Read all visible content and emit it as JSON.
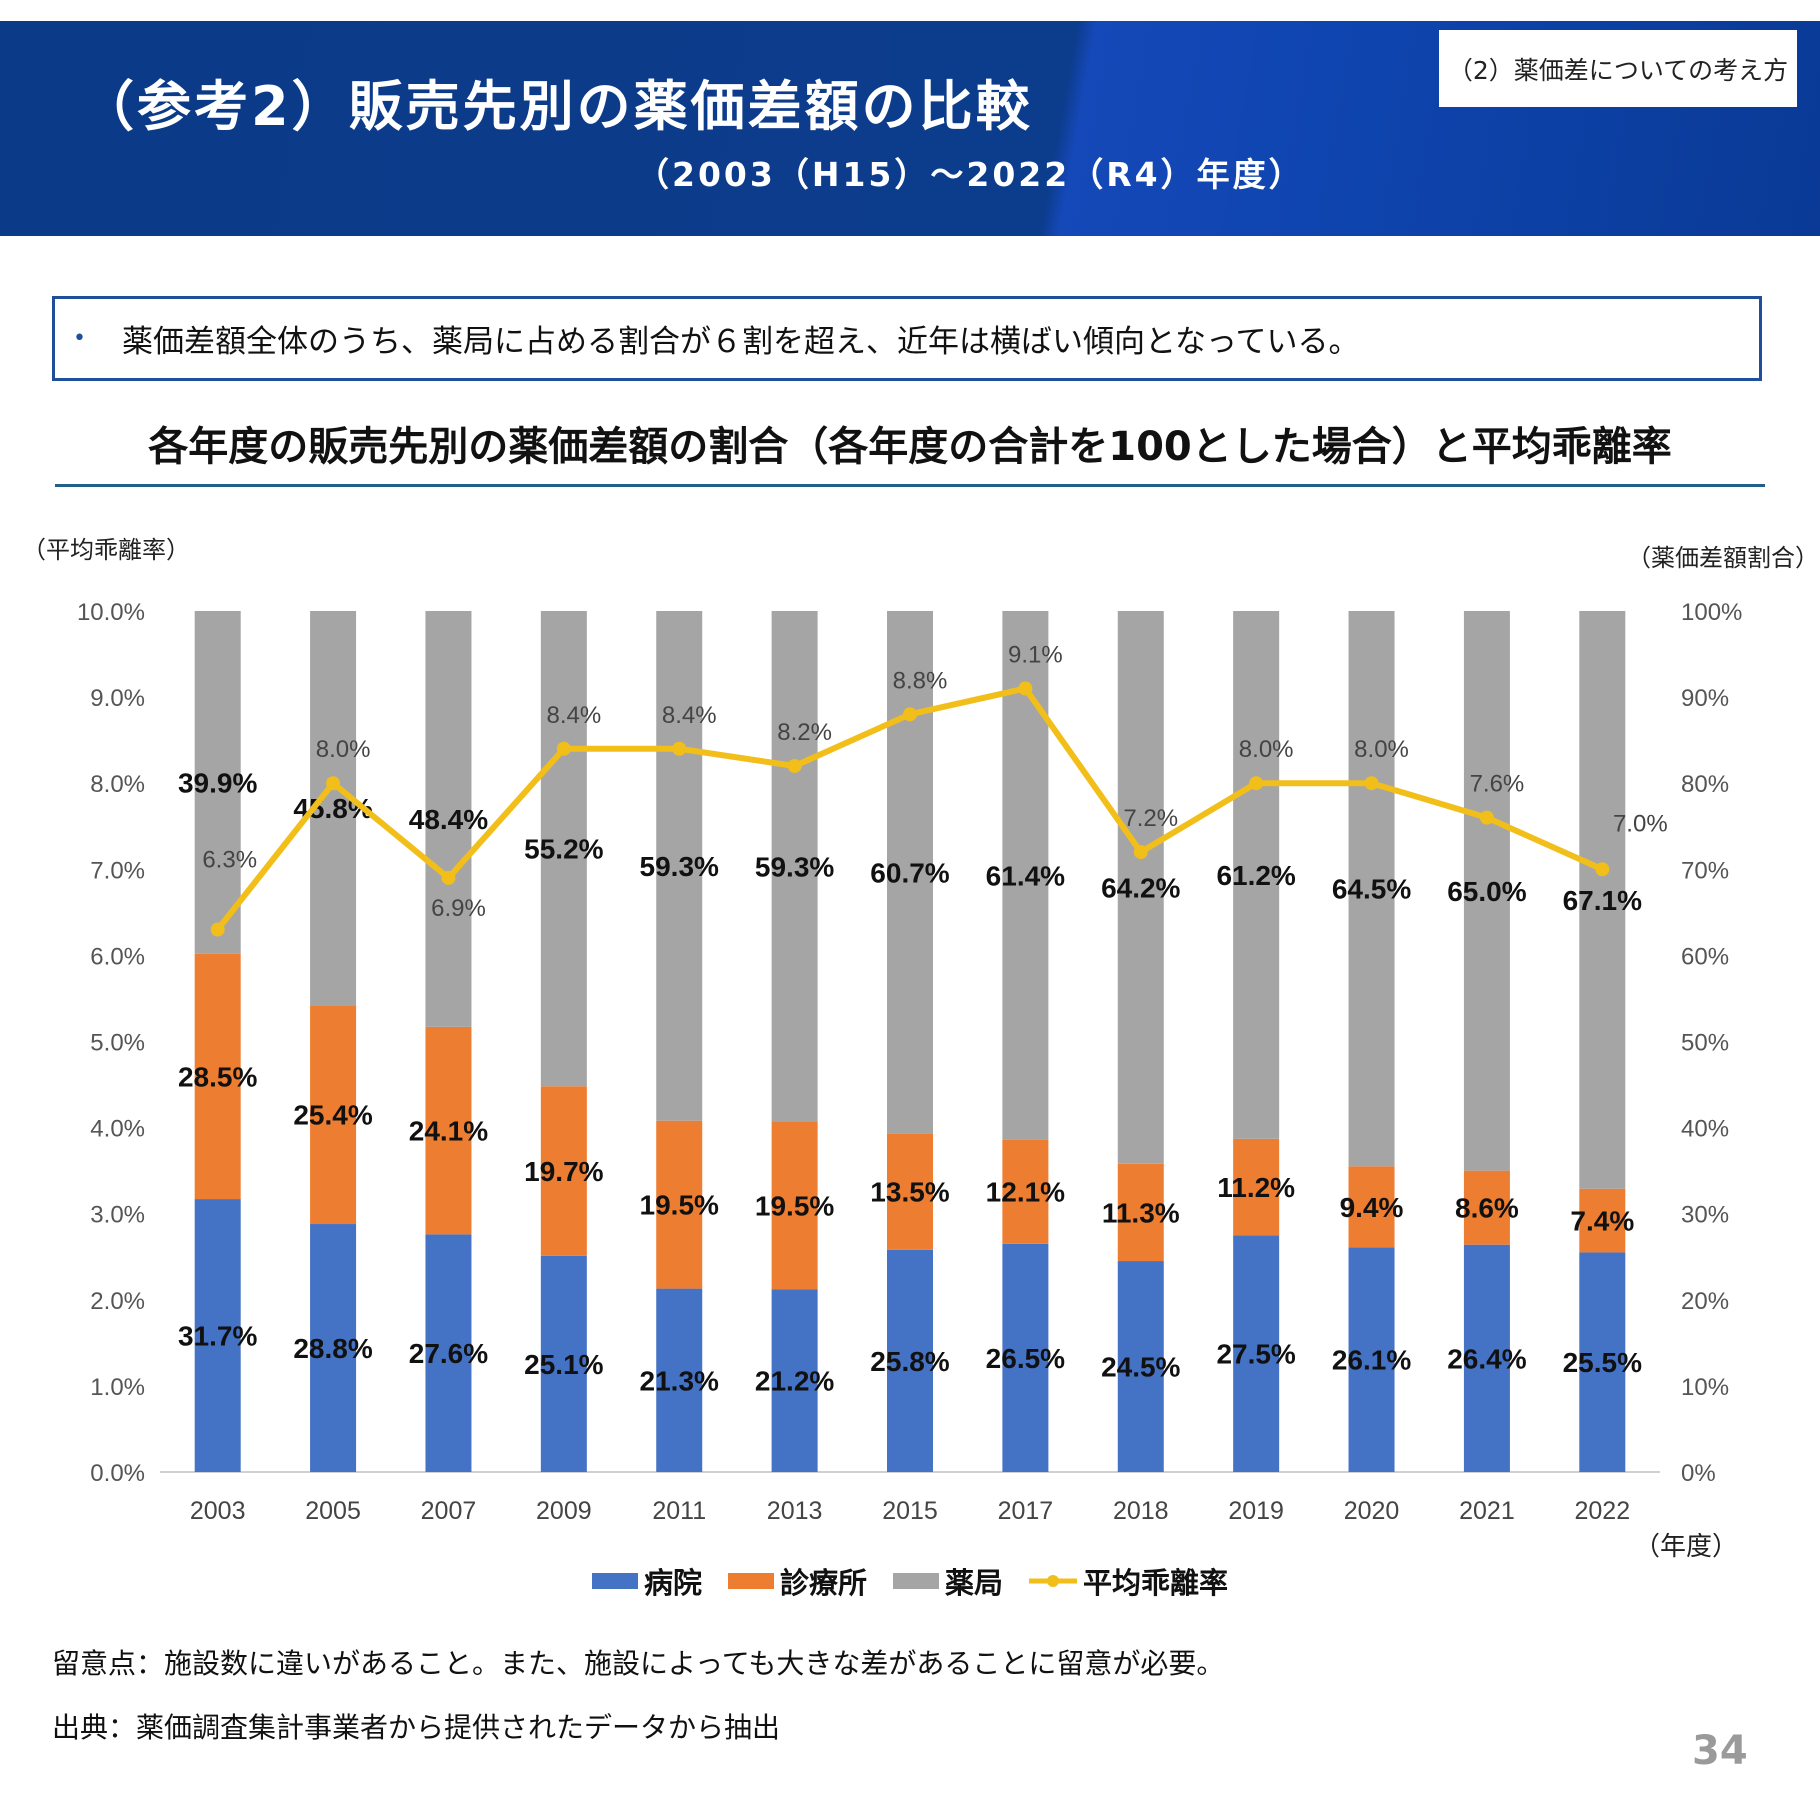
{
  "header": {
    "title": "（参考2）販売先別の薬価差額の比較",
    "subtitle": "（2003（H15）～2022（R4）年度）",
    "section_tag": "（2）薬価差についての考え方"
  },
  "callout": {
    "bullet": "•",
    "text": "薬価差額全体のうち、薬局に占める割合が６割を超え、近年は横ばい傾向となっている。"
  },
  "colors": {
    "header_bg": "#0b3a88",
    "hospital": "#4472C4",
    "clinic": "#ED7D31",
    "pharmacy": "#A5A5A5",
    "average": "#F2BE1A"
  },
  "chart_data": {
    "type": "bar",
    "stacked": true,
    "title": "各年度の販売先別の薬価差額の割合（各年度の合計を100とした場合）と平均乖離率",
    "ylabel_left": "（平均乖離率）",
    "ylabel_right": "（薬価差額割合）",
    "xlabel": "（年度）",
    "ylim_left": [
      0,
      10
    ],
    "ylim_right": [
      0,
      100
    ],
    "yticks_left": [
      "0.0%",
      "1.0%",
      "2.0%",
      "3.0%",
      "4.0%",
      "5.0%",
      "6.0%",
      "7.0%",
      "8.0%",
      "9.0%",
      "10.0%"
    ],
    "yticks_right": [
      "0%",
      "10%",
      "20%",
      "30%",
      "40%",
      "50%",
      "60%",
      "70%",
      "80%",
      "90%",
      "100%"
    ],
    "grid": false,
    "legend_position": "bottom",
    "categories": [
      "2003",
      "2005",
      "2007",
      "2009",
      "2011",
      "2013",
      "2015",
      "2017",
      "2018",
      "2019",
      "2020",
      "2021",
      "2022"
    ],
    "series": [
      {
        "name": "病院",
        "type": "bar",
        "axis": "right",
        "values": [
          31.7,
          28.8,
          27.6,
          25.1,
          21.3,
          21.2,
          25.8,
          26.5,
          24.5,
          27.5,
          26.1,
          26.4,
          25.5
        ]
      },
      {
        "name": "診療所",
        "type": "bar",
        "axis": "right",
        "values": [
          28.5,
          25.4,
          24.1,
          19.7,
          19.5,
          19.5,
          13.5,
          12.1,
          11.3,
          11.2,
          9.4,
          8.6,
          7.4
        ]
      },
      {
        "name": "薬局",
        "type": "bar",
        "axis": "right",
        "values": [
          39.9,
          45.8,
          48.4,
          55.2,
          59.3,
          59.3,
          60.7,
          61.4,
          64.2,
          61.2,
          64.5,
          65.0,
          67.1
        ]
      },
      {
        "name": "平均乖離率",
        "type": "line",
        "axis": "left",
        "values": [
          6.3,
          8.0,
          6.9,
          8.4,
          8.4,
          8.2,
          8.8,
          9.1,
          7.2,
          8.0,
          8.0,
          7.6,
          7.0
        ]
      }
    ]
  },
  "notes": {
    "caution": "留意点：施設数に違いがあること。また、施設によっても大きな差があることに留意が必要。",
    "source": "出典：薬価調査集計事業者から提供されたデータから抽出"
  },
  "page_number": "34"
}
